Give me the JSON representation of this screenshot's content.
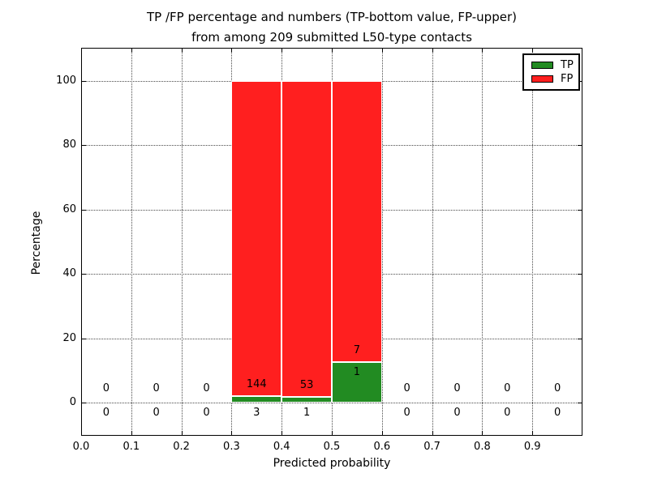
{
  "title": {
    "line1": "TP /FP percentage and numbers (TP-bottom value, FP-upper)",
    "line2": "from among 209 submitted L50-type contacts"
  },
  "axes": {
    "xlabel": "Predicted probability",
    "ylabel": "Percentage",
    "x_ticks": [
      0.0,
      0.1,
      0.2,
      0.3,
      0.4,
      0.5,
      0.6,
      0.7,
      0.8,
      0.9
    ],
    "y_ticks": [
      0,
      20,
      40,
      60,
      80,
      100
    ]
  },
  "legend": {
    "items": [
      {
        "label": "TP",
        "color": "#228b22"
      },
      {
        "label": "FP",
        "color": "#ff1f1f"
      }
    ]
  },
  "chart_data": {
    "type": "bar",
    "stacked": true,
    "title": "TP /FP percentage and numbers (TP-bottom value, FP-upper) from among 209 submitted L50-type contacts",
    "xlabel": "Predicted probability",
    "ylabel": "Percentage",
    "total_contacts": 209,
    "bin_width": 0.1,
    "bin_centers": [
      0.05,
      0.15,
      0.25,
      0.35,
      0.45,
      0.55,
      0.65,
      0.75,
      0.85,
      0.95
    ],
    "series": [
      {
        "name": "TP",
        "color": "#228b22",
        "counts": [
          0,
          0,
          0,
          3,
          1,
          1,
          0,
          0,
          0,
          0
        ],
        "percent": [
          0,
          0,
          0,
          2.0,
          1.9,
          12.5,
          0,
          0,
          0,
          0
        ]
      },
      {
        "name": "FP",
        "color": "#ff1f1f",
        "counts": [
          0,
          0,
          0,
          144,
          53,
          7,
          0,
          0,
          0,
          0
        ],
        "percent": [
          0,
          0,
          0,
          98.0,
          98.1,
          87.5,
          0,
          0,
          0,
          0
        ]
      }
    ],
    "xlim": [
      0.0,
      1.0
    ],
    "ylim": [
      -10,
      110
    ],
    "grid": "dotted",
    "legend_position": "upper right"
  }
}
